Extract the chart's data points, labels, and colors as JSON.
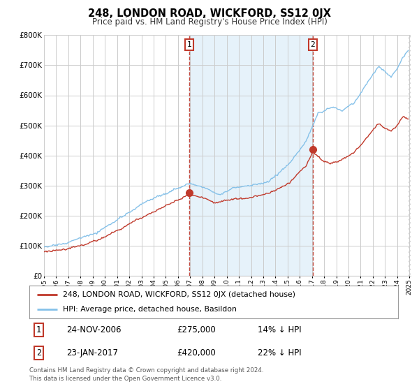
{
  "title": "248, LONDON ROAD, WICKFORD, SS12 0JX",
  "subtitle": "Price paid vs. HM Land Registry's House Price Index (HPI)",
  "ylim": [
    0,
    800000
  ],
  "sale1_date": 2006.92,
  "sale1_price": 275000,
  "sale1_label": "1",
  "sale2_date": 2017.07,
  "sale2_price": 420000,
  "sale2_label": "2",
  "hpi_color": "#85c1e9",
  "hpi_fill_color": "#d6eaf8",
  "price_color": "#c0392b",
  "sale_marker_color": "#c0392b",
  "vline_color": "#c0392b",
  "grid_color": "#cccccc",
  "bg_color": "#ffffff",
  "legend_label_red": "248, LONDON ROAD, WICKFORD, SS12 0JX (detached house)",
  "legend_label_blue": "HPI: Average price, detached house, Basildon",
  "note1_num": "1",
  "note1_date": "24-NOV-2006",
  "note1_price": "£275,000",
  "note1_hpi": "14% ↓ HPI",
  "note2_num": "2",
  "note2_date": "23-JAN-2017",
  "note2_price": "£420,000",
  "note2_hpi": "22% ↓ HPI",
  "footer": "Contains HM Land Registry data © Crown copyright and database right 2024.\nThis data is licensed under the Open Government Licence v3.0."
}
